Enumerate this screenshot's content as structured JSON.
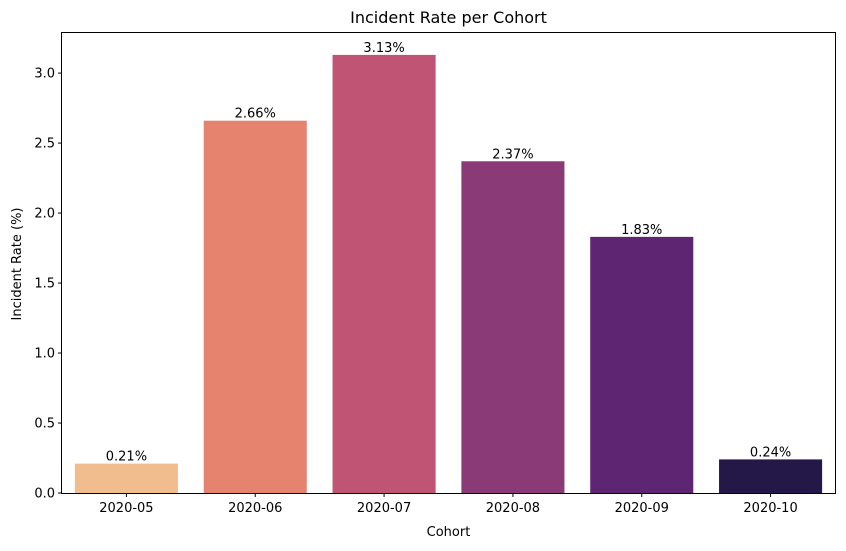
{
  "chart_data": {
    "type": "bar",
    "title": "Incident Rate per Cohort",
    "xlabel": "Cohort",
    "ylabel": "Incident Rate (%)",
    "categories": [
      "2020-05",
      "2020-06",
      "2020-07",
      "2020-08",
      "2020-09",
      "2020-10"
    ],
    "values": [
      0.21,
      2.66,
      3.13,
      2.37,
      1.83,
      0.24
    ],
    "value_labels": [
      "0.21%",
      "2.66%",
      "3.13%",
      "2.37%",
      "1.83%",
      "0.24%"
    ],
    "colors": [
      "#F1BD8F",
      "#E5836F",
      "#C05474",
      "#8B3A78",
      "#5E2572",
      "#231847"
    ],
    "ylim": [
      0,
      3.2865
    ],
    "yticks": [
      0.0,
      0.5,
      1.0,
      1.5,
      2.0,
      2.5,
      3.0
    ],
    "ytick_labels": [
      "0.0",
      "0.5",
      "1.0",
      "1.5",
      "2.0",
      "2.5",
      "3.0"
    ],
    "grid": false,
    "legend": "none"
  }
}
